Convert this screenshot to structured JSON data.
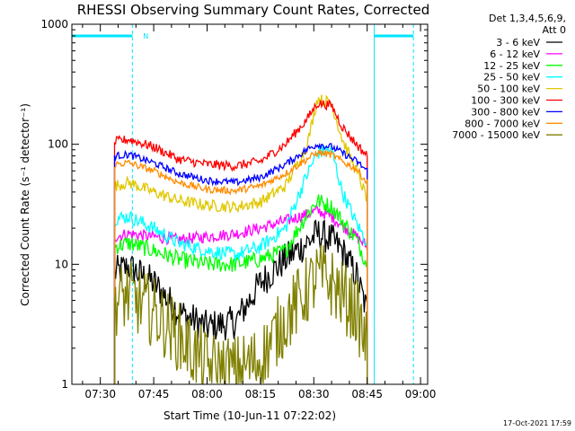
{
  "chart_data": {
    "type": "line",
    "title": "RHESSI Observing Summary Count Rates, Corrected",
    "xlabel": "Start Time (10-Jun-11 07:22:02)",
    "ylabel": "Corrected Count Rate (s⁻¹ detector⁻¹)",
    "y_scale": "log",
    "ylim": [
      1,
      1000
    ],
    "xlim": [
      "07:22",
      "09:02"
    ],
    "x_ticks": [
      "07:30",
      "07:45",
      "08:00",
      "08:15",
      "08:30",
      "08:45",
      "09:00"
    ],
    "y_ticks": [
      "1",
      "10",
      "100",
      "1000"
    ],
    "grid": false,
    "legend_header": [
      "Det 1,3,4,5,6,9,",
      "Att 0"
    ],
    "legend_placement": "right",
    "timestamp": "17-Oct-2021 17:59",
    "annotations": [
      {
        "text": "N",
        "x": "07:40"
      }
    ],
    "night_segments": [
      {
        "start": "07:22",
        "end": "07:39",
        "y": 800
      },
      {
        "start": "08:47",
        "end": "08:58",
        "y": 800
      }
    ],
    "markers": {
      "solid_vertical": [
        "07:22",
        "08:47"
      ],
      "dashed_vertical": [
        "07:39",
        "08:58"
      ]
    },
    "x": [
      "07:34",
      "07:38",
      "07:45",
      "07:52",
      "08:00",
      "08:08",
      "08:15",
      "08:22",
      "08:28",
      "08:31",
      "08:35",
      "08:38",
      "08:42",
      "08:45"
    ],
    "series": [
      {
        "name": "3 - 6 keV",
        "color": "#000000",
        "noise": 0.14,
        "values": [
          8.5,
          9.5,
          7,
          4,
          3,
          3.3,
          7,
          11,
          15,
          18,
          16,
          13,
          8,
          4
        ]
      },
      {
        "name": "6 - 12 keV",
        "color": "#ff00ff",
        "noise": 0.05,
        "values": [
          17,
          18,
          17,
          16,
          17,
          18,
          20,
          23,
          26,
          28,
          25,
          21,
          17,
          14
        ]
      },
      {
        "name": "12 - 25 keV",
        "color": "#00ff00",
        "noise": 0.07,
        "values": [
          14,
          15,
          13,
          11,
          10,
          10,
          11,
          13,
          26,
          34,
          30,
          23,
          16,
          10
        ]
      },
      {
        "name": "25 - 50 keV",
        "color": "#00ffff",
        "noise": 0.06,
        "values": [
          24,
          25,
          20,
          15,
          13,
          12,
          14,
          20,
          55,
          85,
          90,
          40,
          22,
          15
        ]
      },
      {
        "name": "50 - 100 keV",
        "color": "#e0c800",
        "noise": 0.05,
        "values": [
          45,
          48,
          40,
          34,
          31,
          30,
          33,
          45,
          95,
          240,
          220,
          110,
          60,
          35
        ]
      },
      {
        "name": "100 - 300 keV",
        "color": "#ff0000",
        "noise": 0.04,
        "values": [
          105,
          110,
          95,
          75,
          68,
          66,
          72,
          100,
          160,
          220,
          210,
          140,
          100,
          80
        ]
      },
      {
        "name": "300 - 800 keV",
        "color": "#0000ff",
        "noise": 0.03,
        "values": [
          80,
          82,
          70,
          57,
          50,
          48,
          53,
          68,
          90,
          100,
          95,
          85,
          72,
          60
        ]
      },
      {
        "name": "800 - 7000 keV",
        "color": "#ff8c00",
        "noise": 0.03,
        "values": [
          68,
          70,
          60,
          48,
          42,
          41,
          45,
          57,
          75,
          85,
          82,
          72,
          62,
          48
        ]
      },
      {
        "name": "7000 - 15000 keV",
        "color": "#808000",
        "noise": 0.3,
        "values": [
          5,
          5.5,
          4,
          2.5,
          1.4,
          1.3,
          1.6,
          3.5,
          6,
          8,
          7,
          5.5,
          4,
          2
        ]
      }
    ]
  }
}
